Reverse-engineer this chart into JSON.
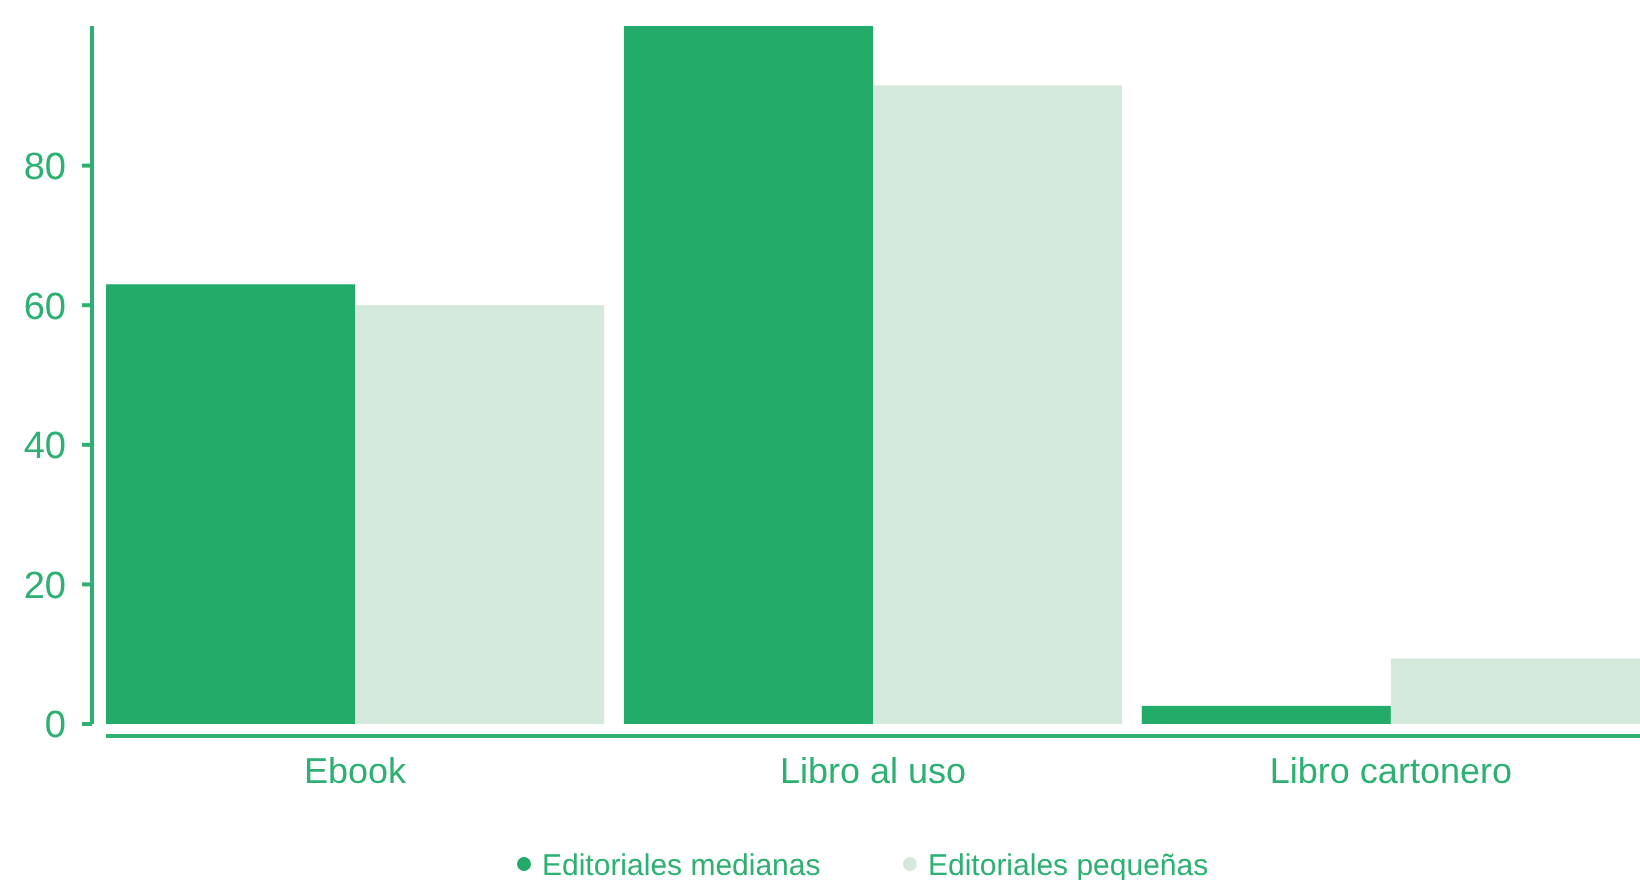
{
  "chart_data": {
    "type": "bar",
    "categories": [
      "Ebook",
      "Libro al uso",
      "Libro cartonero"
    ],
    "series": [
      {
        "name": "Editoriales medianas",
        "color": "#23ab6a",
        "values": [
          63,
          100,
          2.6
        ]
      },
      {
        "name": "Editoriales pequeñas",
        "color": "#d4e9db",
        "values": [
          60,
          91.5,
          9.4
        ]
      }
    ],
    "ylim": [
      0,
      100
    ],
    "yticks": [
      0,
      20,
      40,
      60,
      80
    ],
    "grid": false,
    "legend": "bottom"
  }
}
